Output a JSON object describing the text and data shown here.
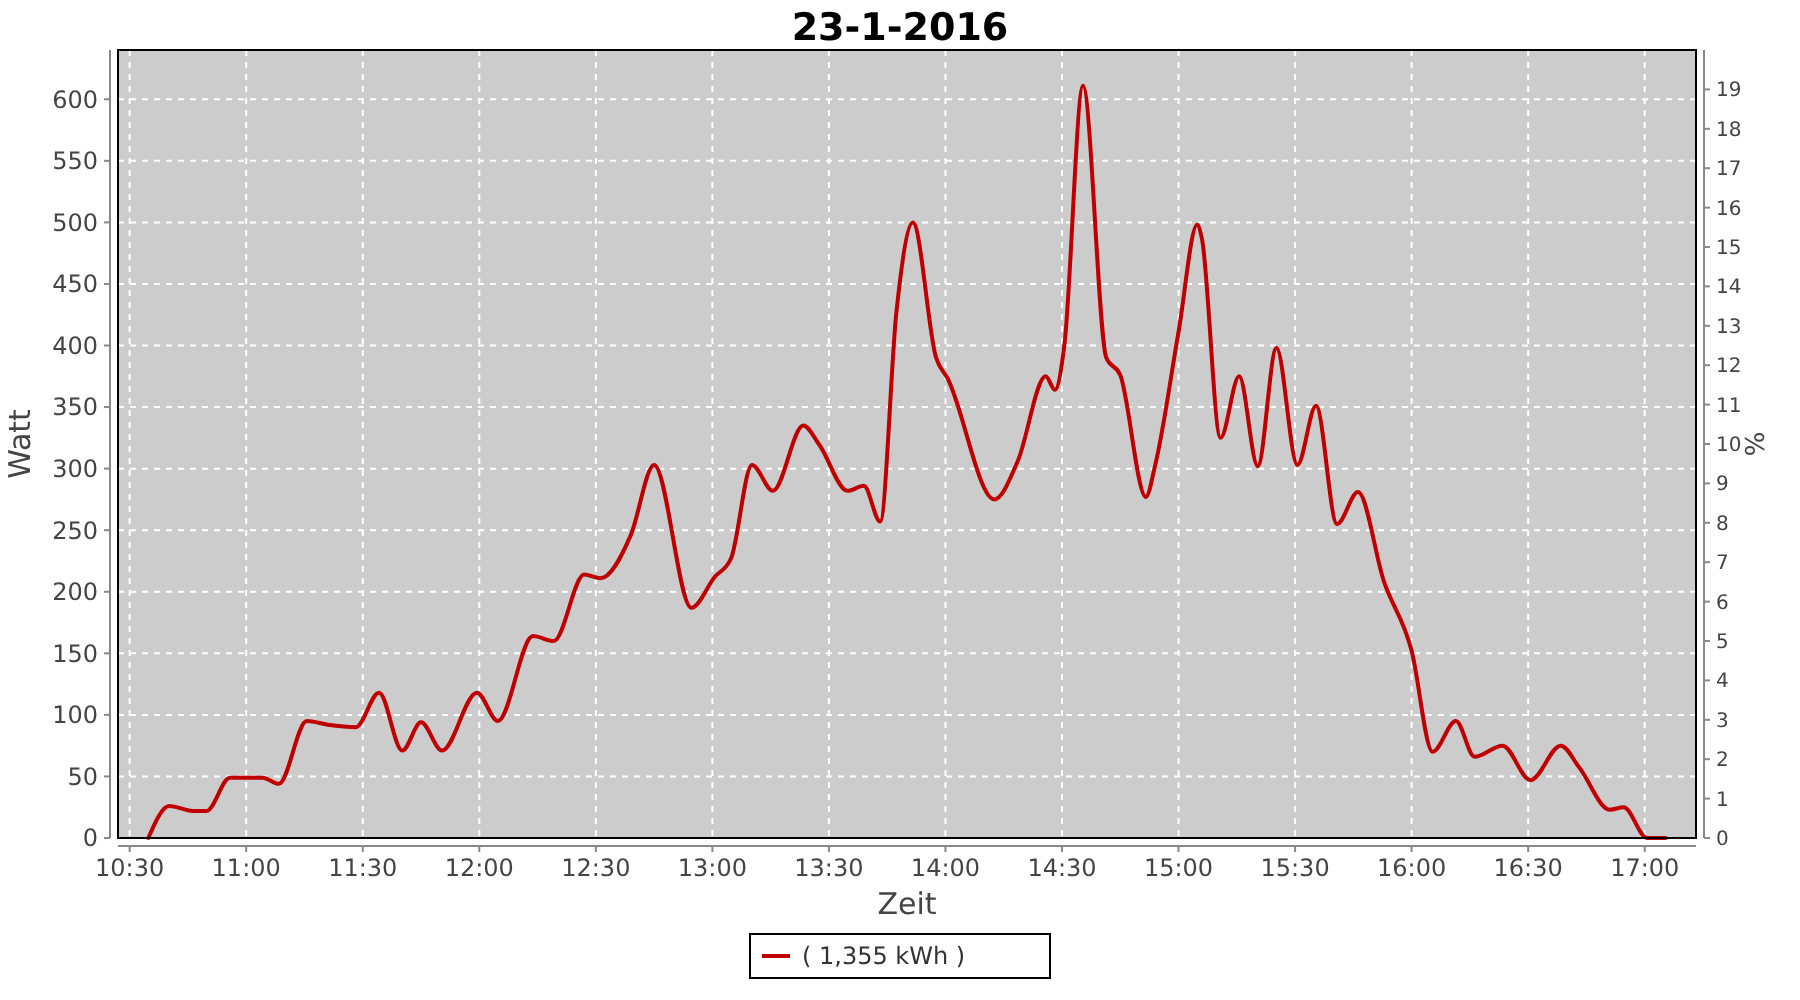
{
  "chart_data": {
    "type": "line",
    "title": "23-1-2016",
    "xlabel": "Zeit",
    "ylabel": "Watt",
    "y2label": "%",
    "x": [
      10.58,
      10.67,
      10.77,
      10.83,
      10.93,
      11.07,
      11.14,
      11.26,
      11.35,
      11.47,
      11.57,
      11.67,
      11.75,
      11.84,
      11.99,
      12.08,
      12.23,
      12.32,
      12.45,
      12.52,
      12.65,
      12.75,
      12.91,
      13.01,
      13.08,
      13.17,
      13.26,
      13.39,
      13.46,
      13.58,
      13.65,
      13.72,
      13.79,
      13.86,
      13.96,
      14.01,
      14.21,
      14.31,
      14.43,
      14.47,
      14.51,
      14.59,
      14.69,
      14.75,
      14.86,
      14.9,
      15.0,
      15.08,
      15.1,
      15.18,
      15.26,
      15.34,
      15.42,
      15.51,
      15.59,
      15.68,
      15.77,
      15.88,
      16.0,
      16.09,
      16.19,
      16.27,
      16.39,
      16.51,
      16.64,
      16.72,
      16.85,
      16.91,
      17.01,
      17.09
    ],
    "series": [
      {
        "name": "( 1,355 kWh )",
        "color": "#c00000",
        "values": [
          0,
          26,
          22,
          22,
          49,
          49,
          44,
          95,
          92,
          90,
          118,
          71,
          94,
          71,
          118,
          95,
          164,
          160,
          214,
          211,
          246,
          303,
          187,
          212,
          227,
          303,
          282,
          335,
          319,
          282,
          286,
          257,
          428,
          500,
          390,
          373,
          275,
          306,
          375,
          364,
          400,
          611,
          390,
          376,
          277,
          303,
          411,
          498,
          487,
          325,
          375,
          302,
          398,
          303,
          351,
          255,
          281,
          209,
          152,
          70,
          95,
          66,
          75,
          47,
          75,
          57,
          23,
          25,
          0,
          0
        ]
      }
    ],
    "xlim": [
      10.45,
      17.22
    ],
    "xticks": [
      {
        "value": 10.5,
        "label": "10:30"
      },
      {
        "value": 11,
        "label": "11:00"
      },
      {
        "value": 11.5,
        "label": "11:30"
      },
      {
        "value": 12,
        "label": "12:00"
      },
      {
        "value": 12.5,
        "label": "12:30"
      },
      {
        "value": 13,
        "label": "13:00"
      },
      {
        "value": 13.5,
        "label": "13:30"
      },
      {
        "value": 14,
        "label": "14:00"
      },
      {
        "value": 14.5,
        "label": "14:30"
      },
      {
        "value": 15,
        "label": "15:00"
      },
      {
        "value": 15.5,
        "label": "15:30"
      },
      {
        "value": 16,
        "label": "16:00"
      },
      {
        "value": 16.5,
        "label": "16:30"
      },
      {
        "value": 17,
        "label": "17:00"
      }
    ],
    "ylim": [
      0,
      640
    ],
    "yticks": [
      0,
      50,
      100,
      150,
      200,
      250,
      300,
      350,
      400,
      450,
      500,
      550,
      600
    ],
    "y2lim": [
      0,
      20
    ],
    "y2ticks": [
      0,
      1,
      2,
      3,
      4,
      5,
      6,
      7,
      8,
      9,
      10,
      11,
      12,
      13,
      14,
      15,
      16,
      17,
      18,
      19
    ],
    "grid": true,
    "legend": "bottom",
    "line_style": "solid"
  }
}
